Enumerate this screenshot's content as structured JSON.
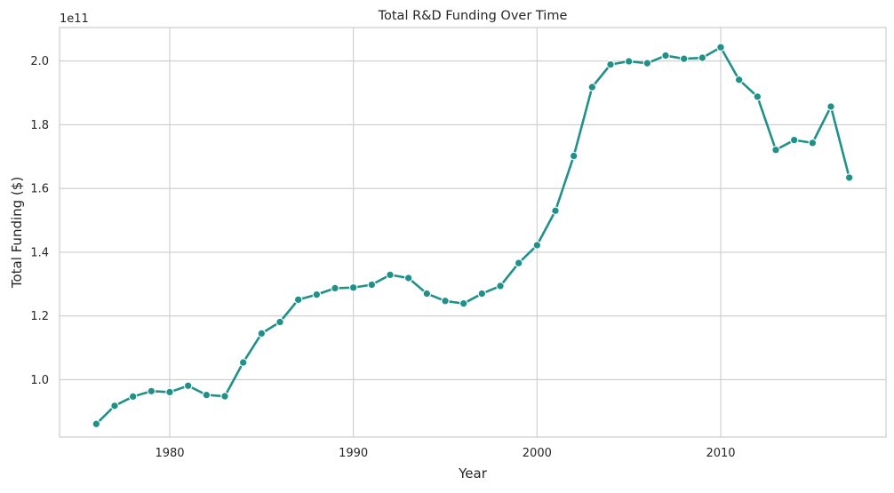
{
  "chart_data": {
    "type": "line",
    "title": "Total R&D Funding Over Time",
    "xlabel": "Year",
    "ylabel": "Total Funding ($)",
    "y_offset_label": "1e11",
    "xlim": [
      1974,
      2019
    ],
    "ylim": [
      0.82,
      2.105
    ],
    "grid": true,
    "legend": "none",
    "line_color": "#1f9188",
    "x_ticks": [
      1980,
      1990,
      2000,
      2010
    ],
    "x_tick_labels": [
      "1980",
      "1990",
      "2000",
      "2010"
    ],
    "y_ticks": [
      1.0,
      1.2,
      1.4,
      1.6,
      1.8,
      2.0
    ],
    "y_tick_labels": [
      "1.0",
      "1.2",
      "1.4",
      "1.6",
      "1.8",
      "2.0"
    ],
    "x": [
      1976,
      1977,
      1978,
      1979,
      1980,
      1981,
      1982,
      1983,
      1984,
      1985,
      1986,
      1987,
      1988,
      1989,
      1990,
      1991,
      1992,
      1993,
      1994,
      1995,
      1996,
      1997,
      1998,
      1999,
      2000,
      2001,
      2002,
      2003,
      2004,
      2005,
      2006,
      2007,
      2008,
      2009,
      2010,
      2011,
      2012,
      2013,
      2014,
      2015,
      2016,
      2017
    ],
    "series": [
      {
        "values": [
          0.861,
          0.918,
          0.947,
          0.964,
          0.961,
          0.981,
          0.952,
          0.948,
          1.054,
          1.145,
          1.181,
          1.251,
          1.267,
          1.287,
          1.289,
          1.298,
          1.329,
          1.319,
          1.27,
          1.247,
          1.239,
          1.27,
          1.294,
          1.366,
          1.422,
          1.53,
          1.702,
          1.918,
          1.989,
          1.999,
          1.993,
          2.017,
          2.007,
          2.01,
          2.043,
          1.941,
          1.888,
          1.721,
          1.752,
          1.743,
          1.857,
          1.634
        ]
      }
    ]
  }
}
